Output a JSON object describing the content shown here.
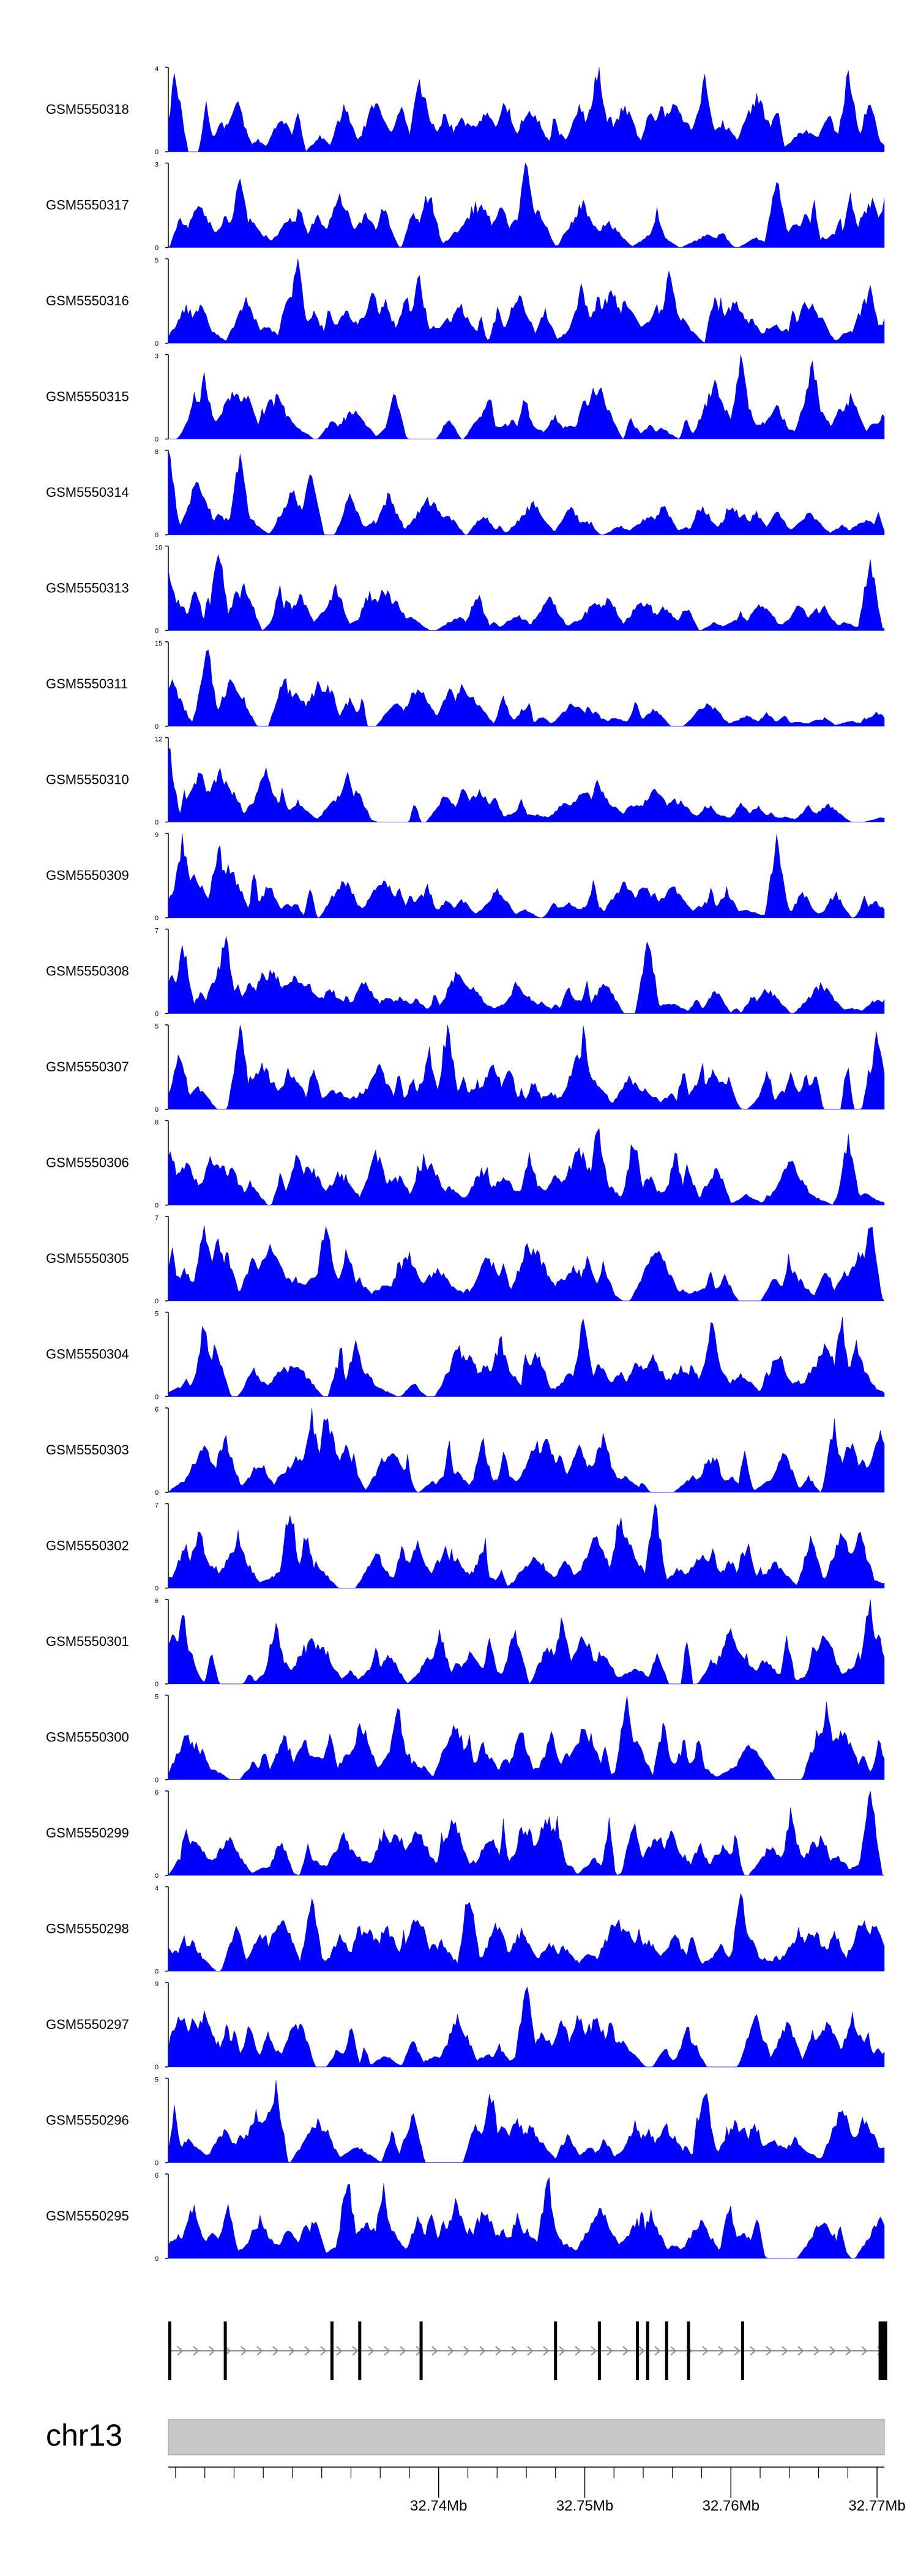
{
  "colors": {
    "coverage": "#0000ff",
    "axis": "#000000",
    "ideogram": "#c8c8c8",
    "gene": "#000000",
    "intron": "#8c8c8c",
    "background": "#ffffff"
  },
  "chart_data": {
    "type": "area",
    "title": "",
    "chromosome": "chr13",
    "xlim": [
      32.7215,
      32.7705
    ],
    "x_ticks": [
      32.74,
      32.75,
      32.76,
      32.77
    ],
    "x_tick_labels": [
      "32.74Mb",
      "32.75Mb",
      "32.76Mb",
      "32.77Mb"
    ],
    "x_minor_ticks": [
      32.722,
      32.724,
      32.726,
      32.728,
      32.73,
      32.732,
      32.734,
      32.736,
      32.738,
      32.742,
      32.744,
      32.746,
      32.748,
      32.752,
      32.754,
      32.756,
      32.758,
      32.762,
      32.764,
      32.766,
      32.768
    ],
    "tracks": [
      {
        "name": "GSM5550318",
        "ymin": "0",
        "ymax": "4",
        "max": 4,
        "seed": 318,
        "peaks": [
          [
            0.01,
            3.6
          ],
          [
            0.35,
            3.4
          ],
          [
            0.6,
            4.0
          ],
          [
            0.75,
            3.7
          ],
          [
            0.95,
            3.8
          ]
        ],
        "falloff": 0.0
      },
      {
        "name": "GSM5550317",
        "ymin": "0",
        "ymax": "3",
        "max": 3,
        "seed": 317,
        "peaks": [
          [
            0.1,
            2.8
          ],
          [
            0.5,
            3.0
          ],
          [
            0.85,
            2.6
          ]
        ],
        "falloff": 0.0
      },
      {
        "name": "GSM5550316",
        "ymin": "0",
        "ymax": "5",
        "max": 5,
        "seed": 316,
        "peaks": [
          [
            0.18,
            4.8
          ],
          [
            0.35,
            4.0
          ],
          [
            0.7,
            4.2
          ],
          [
            0.98,
            3.5
          ]
        ],
        "falloff": 0.0
      },
      {
        "name": "GSM5550315",
        "ymin": "0",
        "ymax": "3",
        "max": 3,
        "seed": 315,
        "peaks": [
          [
            0.05,
            2.2
          ],
          [
            0.8,
            3.0
          ],
          [
            0.9,
            2.8
          ]
        ],
        "falloff": 0.0
      },
      {
        "name": "GSM5550314",
        "ymin": "0",
        "ymax": "8",
        "max": 8,
        "seed": 314,
        "peaks": [
          [
            0.0,
            7.8
          ],
          [
            0.1,
            7.5
          ],
          [
            0.2,
            6.5
          ]
        ],
        "falloff": 0.6
      },
      {
        "name": "GSM5550313",
        "ymin": "0",
        "ymax": "10",
        "max": 10,
        "seed": 313,
        "peaks": [
          [
            0.0,
            8.0
          ],
          [
            0.07,
            9.6
          ],
          [
            0.98,
            8.5
          ]
        ],
        "falloff": 0.6
      },
      {
        "name": "GSM5550311",
        "ymin": "0",
        "ymax": "15",
        "max": 15,
        "seed": 311,
        "peaks": [
          [
            0.05,
            9.0
          ],
          [
            0.055,
            13.5
          ],
          [
            0.17,
            6.0
          ]
        ],
        "falloff": 0.75
      },
      {
        "name": "GSM5550310",
        "ymin": "0",
        "ymax": "12",
        "max": 12,
        "seed": 310,
        "peaks": [
          [
            0.0,
            11.0
          ],
          [
            0.25,
            7.0
          ],
          [
            0.6,
            6.5
          ]
        ],
        "falloff": 0.6
      },
      {
        "name": "GSM5550309",
        "ymin": "0",
        "ymax": "9",
        "max": 9,
        "seed": 309,
        "peaks": [
          [
            0.02,
            8.5
          ],
          [
            0.07,
            8.0
          ],
          [
            0.85,
            8.0
          ]
        ],
        "falloff": 0.5
      },
      {
        "name": "GSM5550308",
        "ymin": "0",
        "ymax": "7",
        "max": 7,
        "seed": 308,
        "peaks": [
          [
            0.02,
            6.0
          ],
          [
            0.08,
            6.8
          ],
          [
            0.67,
            6.5
          ]
        ],
        "falloff": 0.5
      },
      {
        "name": "GSM5550307",
        "ymin": "0",
        "ymax": "5",
        "max": 5,
        "seed": 307,
        "peaks": [
          [
            0.1,
            4.8
          ],
          [
            0.39,
            4.9
          ],
          [
            0.58,
            4.5
          ],
          [
            0.99,
            4.4
          ]
        ],
        "falloff": 0.0
      },
      {
        "name": "GSM5550306",
        "ymin": "0",
        "ymax": "8",
        "max": 8,
        "seed": 306,
        "peaks": [
          [
            0.6,
            7.8
          ],
          [
            0.65,
            6.5
          ],
          [
            0.95,
            6.5
          ]
        ],
        "falloff": 0.0
      },
      {
        "name": "GSM5550305",
        "ymin": "0",
        "ymax": "7",
        "max": 7,
        "seed": 305,
        "peaks": [
          [
            0.05,
            6.8
          ],
          [
            0.22,
            6.5
          ],
          [
            0.98,
            7.0
          ]
        ],
        "falloff": 0.0
      },
      {
        "name": "GSM5550304",
        "ymin": "0",
        "ymax": "5",
        "max": 5,
        "seed": 304,
        "peaks": [
          [
            0.05,
            4.5
          ],
          [
            0.58,
            4.8
          ],
          [
            0.76,
            4.9
          ],
          [
            0.94,
            4.5
          ]
        ],
        "falloff": 0.0
      },
      {
        "name": "GSM5550303",
        "ymin": "0",
        "ymax": "6",
        "max": 6,
        "seed": 303,
        "peaks": [
          [
            0.2,
            5.9
          ],
          [
            0.22,
            5.5
          ],
          [
            0.93,
            4.8
          ]
        ],
        "falloff": 0.0
      },
      {
        "name": "GSM5550302",
        "ymin": "0",
        "ymax": "7",
        "max": 7,
        "seed": 302,
        "peaks": [
          [
            0.17,
            6.9
          ],
          [
            0.68,
            6.8
          ],
          [
            0.63,
            6.0
          ]
        ],
        "falloff": 0.0
      },
      {
        "name": "GSM5550301",
        "ymin": "0",
        "ymax": "6",
        "max": 6,
        "seed": 301,
        "peaks": [
          [
            0.02,
            5.0
          ],
          [
            0.15,
            4.5
          ],
          [
            0.55,
            4.8
          ],
          [
            0.98,
            5.9
          ]
        ],
        "falloff": 0.0
      },
      {
        "name": "GSM5550300",
        "ymin": "0",
        "ymax": "5",
        "max": 5,
        "seed": 300,
        "peaks": [
          [
            0.32,
            4.5
          ],
          [
            0.64,
            4.8
          ],
          [
            0.92,
            4.2
          ]
        ],
        "falloff": 0.0
      },
      {
        "name": "GSM5550299",
        "ymin": "0",
        "ymax": "6",
        "max": 6,
        "seed": 299,
        "peaks": [
          [
            0.65,
            4.0
          ],
          [
            0.87,
            4.5
          ],
          [
            0.98,
            5.9
          ]
        ],
        "falloff": 0.0
      },
      {
        "name": "GSM5550298",
        "ymin": "0",
        "ymax": "4",
        "max": 4,
        "seed": 298,
        "peaks": [
          [
            0.2,
            3.6
          ],
          [
            0.42,
            3.9
          ],
          [
            0.8,
            3.6
          ]
        ],
        "falloff": 0.0
      },
      {
        "name": "GSM5550297",
        "ymin": "0",
        "ymax": "9",
        "max": 9,
        "seed": 297,
        "peaks": [
          [
            0.5,
            8.9
          ],
          [
            0.14,
            3.5
          ],
          [
            0.9,
            3.5
          ]
        ],
        "falloff": 0.0
      },
      {
        "name": "GSM5550296",
        "ymin": "0",
        "ymax": "5",
        "max": 5,
        "seed": 296,
        "peaks": [
          [
            0.15,
            4.8
          ],
          [
            0.45,
            4.2
          ],
          [
            0.75,
            4.2
          ]
        ],
        "falloff": 0.0
      },
      {
        "name": "GSM5550295",
        "ymin": "0",
        "ymax": "6",
        "max": 6,
        "seed": 295,
        "peaks": [
          [
            0.25,
            5.9
          ],
          [
            0.53,
            5.8
          ],
          [
            0.3,
            5.0
          ]
        ],
        "falloff": 0.0
      }
    ],
    "gene_track": {
      "strand": "+",
      "exons": [
        32.7216,
        32.7254,
        32.7327,
        32.7346,
        32.7388,
        32.748,
        32.751,
        32.7536,
        32.7543,
        32.7556,
        32.7571,
        32.7608,
        32.7704
      ]
    }
  }
}
